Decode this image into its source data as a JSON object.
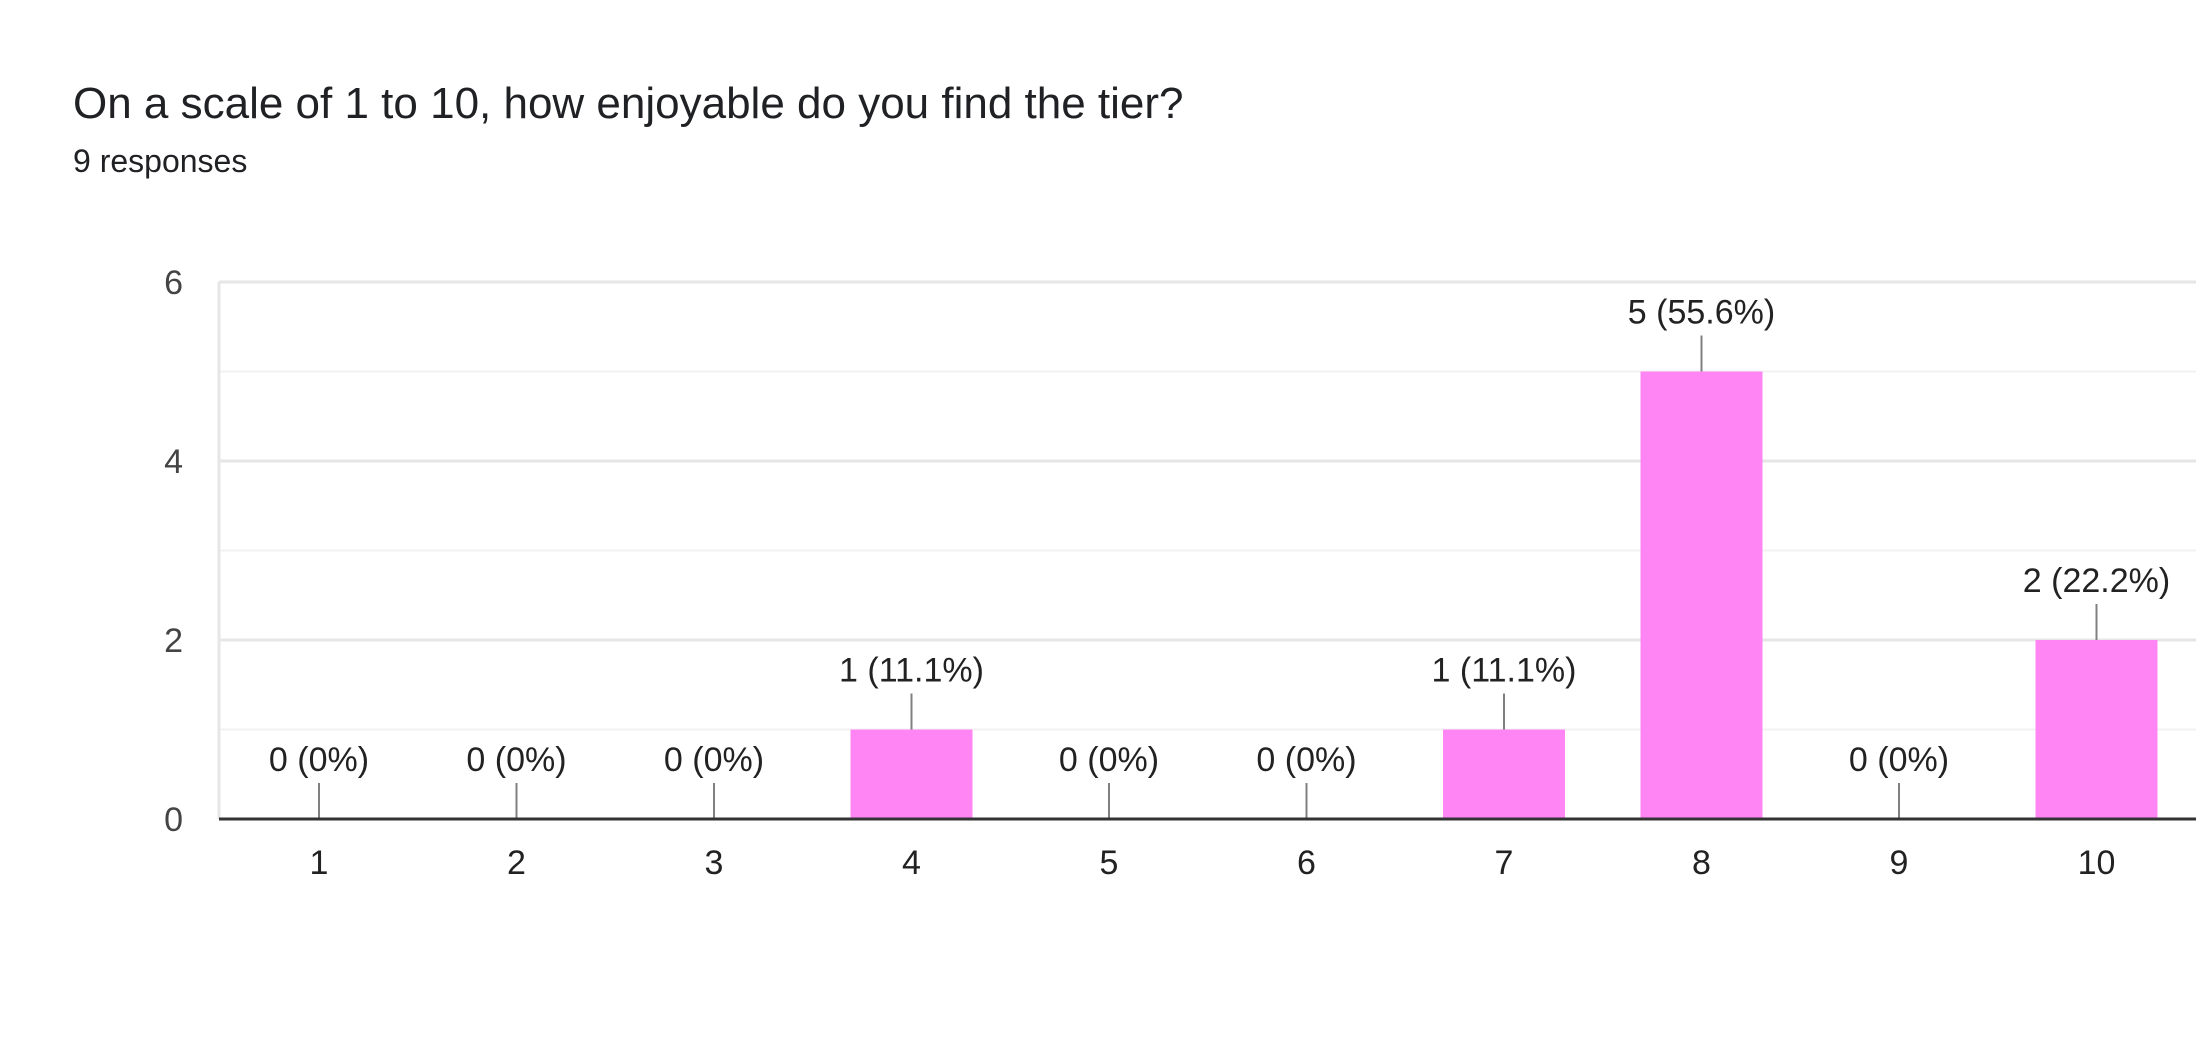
{
  "header": {
    "title": "On a scale of 1 to 10, how enjoyable do you find the tier?",
    "subtitle": "9 responses"
  },
  "colors": {
    "bar": "#ff85f4",
    "grid_major": "#e6e6e6",
    "grid_minor": "#f2f2f2",
    "axis": "#333333",
    "tick_text": "#444444",
    "label_text": "#222222",
    "leader": "#808080"
  },
  "chart_data": {
    "type": "bar",
    "title": "On a scale of 1 to 10, how enjoyable do you find the tier?",
    "subtitle": "9 responses",
    "categories": [
      "1",
      "2",
      "3",
      "4",
      "5",
      "6",
      "7",
      "8",
      "9",
      "10"
    ],
    "values": [
      0,
      0,
      0,
      1,
      0,
      0,
      1,
      5,
      0,
      2
    ],
    "data_labels": [
      "0 (0%)",
      "0 (0%)",
      "0 (0%)",
      "1 (11.1%)",
      "0 (0%)",
      "0 (0%)",
      "1 (11.1%)",
      "5 (55.6%)",
      "0 (0%)",
      "2 (22.2%)"
    ],
    "yticks": [
      0,
      2,
      4,
      6
    ],
    "ylim": [
      0,
      6
    ],
    "xlabel": "",
    "ylabel": "",
    "grid": true,
    "legend": "none"
  }
}
